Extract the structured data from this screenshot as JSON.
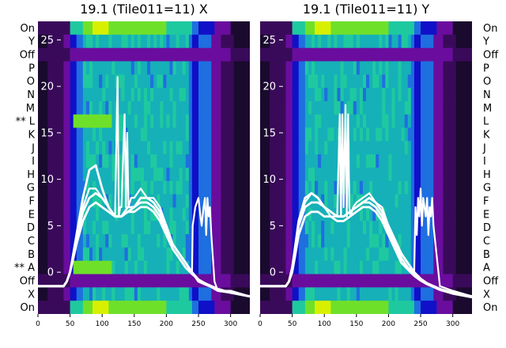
{
  "chart_data": [
    {
      "type": "heatmap",
      "title": "19.1 (Tile011=11) X",
      "row_labels": [
        "On",
        "Y",
        "Off",
        "P",
        "O",
        "N",
        "M",
        "** L",
        "K",
        "J",
        "I",
        "H",
        "G",
        "F",
        "E",
        "D",
        "C",
        "B",
        "** A",
        "Off",
        "X",
        "On"
      ],
      "x_ticks": [
        0,
        50,
        100,
        150,
        200,
        250,
        300
      ],
      "xlim": [
        0,
        330
      ],
      "y_ticks": [
        0,
        5,
        10,
        15,
        20,
        25
      ],
      "ylim": [
        -4.5,
        27
      ],
      "colormap": [
        "#1a0a2e",
        "#3a0a5a",
        "#6a0d9e",
        "#1010c8",
        "#1e6fe0",
        "#16b0b8",
        "#1fc9a0",
        "#6fe02a",
        "#d8f000",
        "#ffff00"
      ],
      "series_color": "#ffffff",
      "series": [
        {
          "x": [
            0,
            20,
            40,
            45,
            50,
            55,
            60,
            70,
            80,
            90,
            100,
            110,
            120,
            124,
            126,
            128,
            130,
            135,
            137,
            139,
            141,
            145,
            150,
            160,
            170,
            180,
            190,
            200,
            210,
            220,
            230,
            240,
            241,
            245,
            250,
            253,
            255,
            258,
            260,
            262,
            264,
            266,
            268,
            270,
            275,
            280,
            300,
            320,
            330
          ],
          "y": [
            -1.5,
            -1.5,
            -1.5,
            -1,
            0,
            2,
            4,
            7,
            9,
            9,
            8,
            7,
            6,
            21,
            6,
            7,
            7,
            17,
            7,
            15,
            7,
            8,
            8,
            9,
            8,
            8,
            7,
            5,
            3,
            2,
            1,
            0,
            5,
            7,
            8,
            6,
            5,
            7,
            8,
            4,
            8,
            6,
            7,
            4,
            -1,
            -2,
            -2,
            -2.4,
            -2.6
          ]
        },
        {
          "x": [
            0,
            20,
            40,
            45,
            50,
            55,
            60,
            70,
            80,
            90,
            100,
            110,
            120,
            130,
            140,
            150,
            160,
            170,
            180,
            190,
            200,
            210,
            220,
            230,
            240,
            250,
            260,
            270,
            280,
            300,
            330
          ],
          "y": [
            -1.5,
            -1.5,
            -1.5,
            -1,
            0,
            2,
            4,
            8,
            11,
            11.5,
            9,
            7,
            6,
            6,
            7,
            7,
            8,
            8,
            7.5,
            6.5,
            5,
            3,
            2,
            1,
            0,
            -1,
            -1.3,
            -1.6,
            -2,
            -2.2,
            -2.6
          ]
        },
        {
          "x": [
            0,
            20,
            40,
            45,
            50,
            55,
            60,
            70,
            80,
            90,
            100,
            110,
            120,
            130,
            140,
            150,
            160,
            170,
            180,
            190,
            200,
            210,
            220,
            230,
            240,
            250,
            260,
            270,
            280,
            300,
            330
          ],
          "y": [
            -1.5,
            -1.5,
            -1.5,
            -1,
            0,
            1.5,
            3.5,
            6.5,
            8,
            8.5,
            8,
            7,
            6,
            6,
            6.5,
            7,
            7.5,
            7.5,
            7,
            6,
            4.5,
            3,
            2,
            1,
            0,
            -0.8,
            -1.2,
            -1.5,
            -1.8,
            -2.2,
            -2.6
          ]
        },
        {
          "x": [
            0,
            20,
            40,
            45,
            50,
            55,
            60,
            70,
            80,
            90,
            100,
            110,
            120,
            130,
            140,
            150,
            160,
            170,
            180,
            190,
            200,
            210,
            220,
            230,
            240,
            250,
            260,
            270,
            280,
            300,
            330
          ],
          "y": [
            -1.5,
            -1.5,
            -1.5,
            -1,
            0,
            1.5,
            3,
            5.5,
            7,
            7.5,
            7,
            6.5,
            6,
            6,
            6.5,
            6.5,
            7,
            7,
            6.5,
            5.5,
            4,
            2.5,
            1.5,
            0.5,
            -0.2,
            -0.8,
            -1.2,
            -1.5,
            -1.8,
            -2.2,
            -2.6
          ]
        }
      ]
    },
    {
      "type": "heatmap",
      "title": "19.1 (Tile011=11) Y",
      "row_labels": [
        "On",
        "Y",
        "Off",
        "P",
        "O",
        "N",
        "M",
        "L",
        "K",
        "J",
        "I",
        "H",
        "G",
        "F",
        "E",
        "D",
        "C",
        "B",
        "A",
        "Off",
        "X",
        "On"
      ],
      "x_ticks": [
        0,
        50,
        100,
        150,
        200,
        250,
        300
      ],
      "xlim": [
        0,
        330
      ],
      "y_ticks": [
        0,
        5,
        10,
        15,
        20,
        25
      ],
      "ylim": [
        -4.5,
        27
      ],
      "colormap": [
        "#1a0a2e",
        "#3a0a5a",
        "#6a0d9e",
        "#1010c8",
        "#1e6fe0",
        "#16b0b8",
        "#1fc9a0",
        "#6fe02a",
        "#d8f000",
        "#ffff00"
      ],
      "series_color": "#ffffff",
      "series": [
        {
          "x": [
            0,
            20,
            40,
            45,
            50,
            55,
            60,
            70,
            80,
            90,
            100,
            110,
            120,
            124,
            126,
            128,
            130,
            133,
            135,
            137,
            139,
            141,
            145,
            150,
            160,
            170,
            180,
            190,
            200,
            210,
            220,
            230,
            240,
            242,
            244,
            246,
            248,
            250,
            252,
            254,
            256,
            258,
            260,
            262,
            264,
            266,
            268,
            270,
            280,
            300,
            320,
            330
          ],
          "y": [
            -1.5,
            -1.5,
            -1.5,
            -1,
            0.5,
            3,
            5,
            7.5,
            8.5,
            8,
            7,
            6,
            6,
            17,
            6,
            17,
            7,
            18,
            6,
            17,
            7,
            6,
            7,
            7.5,
            8,
            8.5,
            7.5,
            7,
            5,
            3,
            2,
            1,
            0,
            7,
            4,
            8,
            6,
            9,
            5,
            8,
            7,
            6,
            8,
            4,
            7,
            6,
            8,
            5,
            -1.5,
            -2,
            -2.4,
            -2.6
          ]
        },
        {
          "x": [
            0,
            20,
            40,
            45,
            50,
            55,
            60,
            70,
            80,
            90,
            100,
            110,
            120,
            130,
            140,
            150,
            160,
            170,
            180,
            190,
            200,
            210,
            220,
            230,
            240,
            250,
            260,
            270,
            280,
            300,
            330
          ],
          "y": [
            -1.5,
            -1.5,
            -1.5,
            -1,
            0.5,
            3,
            5.5,
            8,
            8.5,
            8,
            7,
            6.5,
            6,
            6,
            6.5,
            7,
            7.5,
            8,
            7.5,
            6.5,
            5,
            3.5,
            2,
            1,
            0,
            -0.7,
            -1.2,
            -1.5,
            -1.8,
            -2.2,
            -2.6
          ]
        },
        {
          "x": [
            0,
            20,
            40,
            45,
            50,
            55,
            60,
            70,
            80,
            90,
            100,
            110,
            120,
            130,
            140,
            150,
            160,
            170,
            180,
            190,
            200,
            210,
            220,
            230,
            240,
            250,
            260,
            270,
            280,
            300,
            330
          ],
          "y": [
            -1.5,
            -1.5,
            -1.5,
            -1,
            0.5,
            2.5,
            5,
            7,
            7.5,
            7.5,
            7,
            6.5,
            6,
            6,
            6.5,
            7,
            7.5,
            7.5,
            7,
            6,
            4.5,
            3,
            1.5,
            0.5,
            -0.2,
            -0.8,
            -1.2,
            -1.5,
            -1.8,
            -2.2,
            -2.6
          ]
        },
        {
          "x": [
            0,
            20,
            40,
            45,
            50,
            55,
            60,
            70,
            80,
            90,
            100,
            110,
            120,
            130,
            140,
            150,
            160,
            170,
            180,
            190,
            200,
            210,
            220,
            230,
            240,
            250,
            260,
            270,
            280,
            300,
            330
          ],
          "y": [
            -1.5,
            -1.5,
            -1.5,
            -1,
            0,
            2,
            4,
            6,
            6.5,
            6.5,
            6,
            6,
            5.5,
            5.5,
            6,
            6.5,
            7,
            7,
            6.5,
            5.5,
            4,
            2.5,
            1,
            0.3,
            -0.4,
            -0.9,
            -1.3,
            -1.6,
            -1.9,
            -2.3,
            -2.7
          ]
        }
      ]
    }
  ]
}
